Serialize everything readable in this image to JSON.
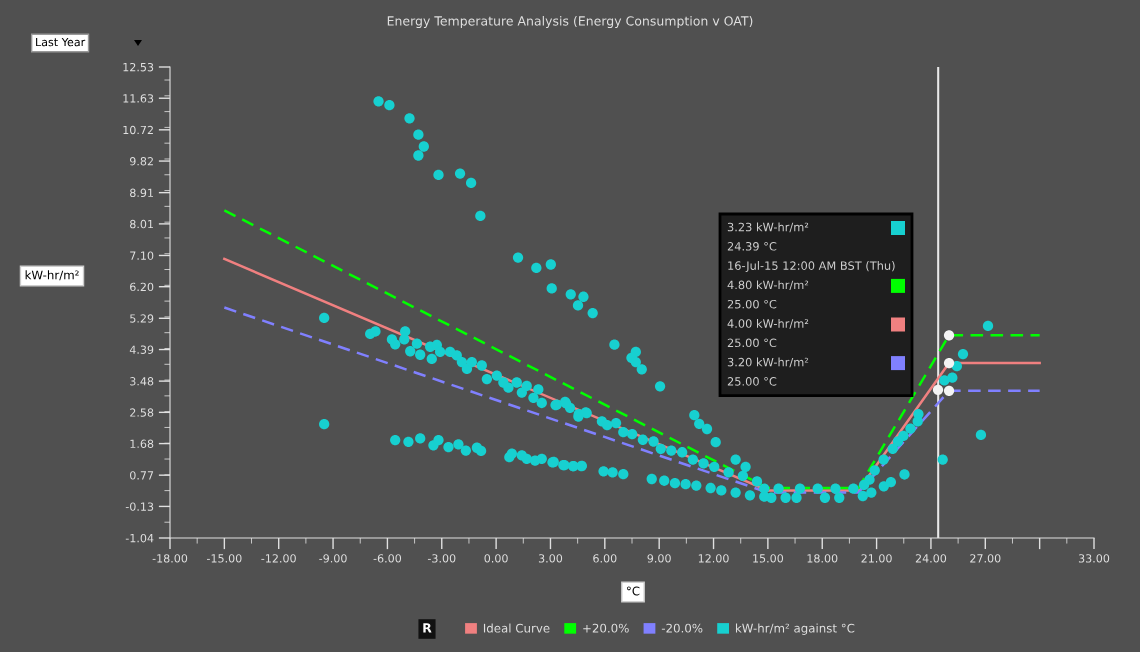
{
  "chart_data": {
    "type": "line",
    "title": "Energy Temperature Analysis (Energy Consumption v OAT)",
    "xlabel": "°C",
    "ylabel": "kW-hr/m²",
    "xlim": [
      -18,
      33
    ],
    "ylim": [
      -1.04,
      12.53
    ],
    "xticks": [
      {
        "value": -18,
        "label": "-18.00"
      },
      {
        "value": -15,
        "label": "-15.00"
      },
      {
        "value": -12,
        "label": "-12.00"
      },
      {
        "value": -9,
        "label": "-9.00"
      },
      {
        "value": -6,
        "label": "-6.00"
      },
      {
        "value": -3,
        "label": "-3.00"
      },
      {
        "value": 0,
        "label": "0.00"
      },
      {
        "value": 3,
        "label": "3.00"
      },
      {
        "value": 6,
        "label": "6.00"
      },
      {
        "value": 9,
        "label": "9.00"
      },
      {
        "value": 12,
        "label": "12.00"
      },
      {
        "value": 15,
        "label": "15.00"
      },
      {
        "value": 18,
        "label": "18.00"
      },
      {
        "value": 21,
        "label": "21.00"
      },
      {
        "value": 24,
        "label": "24.00"
      },
      {
        "value": 27,
        "label": "27.00"
      },
      {
        "value": 30,
        "label": null
      },
      {
        "value": 33,
        "label": "33.00"
      }
    ],
    "yticks": [
      -1.04,
      -0.13,
      0.77,
      1.68,
      2.58,
      3.48,
      4.39,
      5.29,
      {
        "value": 6.2,
        "label": "6.20"
      },
      {
        "value": 7.1,
        "label": "7.10"
      },
      8.01,
      8.91,
      9.82,
      10.72,
      11.63,
      12.53
    ],
    "grid": false,
    "legend": "bottom",
    "ref_lines": [
      {
        "axis": "x",
        "value": 24.4,
        "color": "#e8e8e8"
      }
    ],
    "series": [
      {
        "name": "Ideal Curve",
        "color": "#f08080",
        "line_style": "solid",
        "x": [
          -15,
          15,
          20,
          25,
          30
        ],
        "values": [
          7.0,
          0.33,
          0.33,
          4.0,
          4.0
        ]
      },
      {
        "name": "+20.0%",
        "color": "#00ff00",
        "line_style": "dashed",
        "x": [
          -15,
          15,
          20,
          25,
          30
        ],
        "values": [
          8.4,
          0.4,
          0.4,
          4.8,
          4.8
        ]
      },
      {
        "name": "-20.0%",
        "color": "#8080ff",
        "line_style": "dashed",
        "x": [
          -15,
          15,
          20,
          25,
          30
        ],
        "values": [
          5.6,
          0.27,
          0.27,
          3.2,
          3.2
        ]
      },
      {
        "name": "kW-hr/m² against °C",
        "type": "scatter",
        "marker": "circle",
        "color": "#17d0d0",
        "x": [
          -6.49,
          -5.89,
          -4.78,
          -4.29,
          -3.99,
          -4.29,
          -3.18,
          -1.99,
          -1.38,
          -0.87,
          1.21,
          2.22,
          3.02,
          3.07,
          4.12,
          4.82,
          4.52,
          5.33,
          6.53,
          7.71,
          7.47,
          7.71,
          8.04,
          9.05,
          10.94,
          11.21,
          11.64,
          12.12,
          13.22,
          13.77,
          22.54,
          24.65,
          26.76,
          27.15,
          25.77,
          25.43,
          25.18,
          24.74,
          23.31,
          23.27,
          22.87,
          22.48,
          22.18,
          21.89,
          21.39,
          20.9,
          20.61,
          20.31,
          21.79,
          21.4,
          20.71,
          20.24,
          15.98,
          16.58,
          18.15,
          18.94,
          15.19,
          15.59,
          16.77,
          17.75,
          18.73,
          19.72,
          3.18,
          3.77,
          4.26,
          4.71,
          5.93,
          6.43,
          7.02,
          8.59,
          9.28,
          9.87,
          10.46,
          11.05,
          11.84,
          12.43,
          13.22,
          14.01,
          14.8,
          -9.49,
          -9.49,
          -6.95,
          -6.66,
          -5.75,
          -5.57,
          -5.02,
          -5.07,
          -4.74,
          -4.37,
          -4.19,
          -3.64,
          -3.55,
          -3.27,
          -3.09,
          -2.54,
          -2.17,
          -1.89,
          -1.61,
          -1.34,
          -0.79,
          -0.51,
          0.04,
          0.4,
          0.68,
          1.14,
          1.42,
          1.69,
          2.06,
          2.33,
          2.52,
          3.35,
          3.81,
          4.08,
          4.54,
          5.0,
          -5.57,
          -4.84,
          -4.19,
          -3.46,
          -3.18,
          -2.63,
          -2.08,
          -1.67,
          -1.06,
          -0.83,
          0.73,
          0.87,
          1.42,
          1.69,
          2.15,
          2.52,
          3.11,
          3.71,
          4.26,
          4.73,
          3.28,
          3.86,
          4.56,
          4.95,
          5.84,
          6.13,
          6.62,
          7.02,
          7.51,
          8.1,
          8.69,
          9.09,
          9.67,
          10.27,
          10.86,
          11.45,
          12.04,
          12.83,
          13.62,
          14.4,
          14.8
        ],
        "values": [
          11.54,
          11.43,
          11.05,
          10.58,
          10.24,
          9.98,
          9.42,
          9.46,
          9.19,
          8.24,
          7.04,
          6.74,
          6.84,
          6.15,
          5.98,
          5.91,
          5.66,
          5.44,
          4.53,
          4.32,
          4.15,
          4.03,
          3.82,
          3.33,
          2.5,
          2.25,
          2.1,
          1.72,
          1.22,
          1.01,
          0.79,
          1.22,
          1.93,
          5.07,
          4.26,
          3.91,
          3.58,
          3.5,
          2.53,
          2.32,
          2.11,
          1.9,
          1.74,
          1.53,
          1.22,
          0.91,
          0.64,
          0.49,
          0.57,
          0.45,
          0.27,
          0.17,
          0.12,
          0.12,
          0.12,
          0.12,
          0.12,
          0.38,
          0.38,
          0.38,
          0.38,
          0.38,
          1.15,
          1.06,
          1.03,
          1.03,
          0.88,
          0.85,
          0.8,
          0.66,
          0.61,
          0.54,
          0.51,
          0.47,
          0.4,
          0.33,
          0.27,
          0.19,
          0.15,
          5.3,
          2.24,
          4.84,
          4.91,
          4.68,
          4.54,
          4.91,
          4.68,
          4.34,
          4.56,
          4.24,
          4.47,
          4.12,
          4.52,
          4.32,
          4.32,
          4.22,
          4.03,
          3.83,
          4.03,
          3.93,
          3.54,
          3.64,
          3.44,
          3.29,
          3.44,
          3.15,
          3.34,
          3.0,
          3.24,
          2.85,
          2.8,
          2.88,
          2.71,
          2.46,
          2.56,
          1.78,
          1.73,
          1.83,
          1.63,
          1.78,
          1.58,
          1.66,
          1.48,
          1.56,
          1.47,
          1.29,
          1.39,
          1.34,
          1.24,
          1.19,
          1.24,
          1.14,
          1.06,
          1.03,
          1.04,
          2.79,
          2.84,
          2.53,
          2.58,
          2.32,
          2.21,
          2.27,
          2.01,
          1.95,
          1.79,
          1.74,
          1.53,
          1.48,
          1.43,
          1.22,
          1.11,
          1.01,
          0.85,
          0.75,
          0.59,
          0.38
        ]
      },
      {
        "type": "scatter",
        "marker": "circle",
        "color": "#f4f4f4",
        "x": [
          24.39,
          25,
          25,
          25
        ],
        "values": [
          3.23,
          4.8,
          4.0,
          3.2
        ]
      }
    ],
    "annotations": [
      "Last Year",
      "R",
      "3.23 kW-hr/m²",
      "24.39 °C",
      "16-Jul-15 12:00 AM BST (Thu)",
      "4.80 kW-hr/m²",
      "25.00 °C",
      "4.00 kW-hr/m²",
      "25.00 °C",
      "3.20 kW-hr/m²",
      "25.00 °C"
    ]
  }
}
